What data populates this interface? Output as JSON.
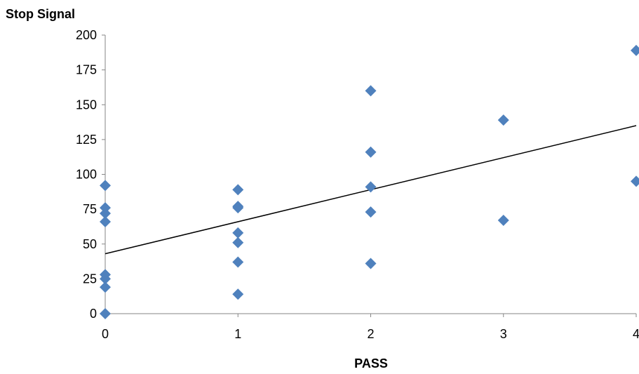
{
  "chart_data": {
    "type": "scatter",
    "ylabel": "Stop Signal",
    "xlabel": "PASS",
    "xlim": [
      0,
      4
    ],
    "ylim": [
      0,
      200
    ],
    "x_ticks": [
      "0",
      "1",
      "2",
      "3",
      "4"
    ],
    "y_ticks": [
      "0",
      "25",
      "50",
      "75",
      "100",
      "125",
      "150",
      "175",
      "200"
    ],
    "grid": false,
    "legend": "none",
    "marker": "diamond",
    "marker_color": "#4F81BD",
    "trendline": {
      "type": "linear",
      "color": "#000000",
      "y_at_x0": 43,
      "y_at_x4": 135
    },
    "series": [
      {
        "points": [
          [
            0,
            92
          ],
          [
            0,
            76
          ],
          [
            0,
            72
          ],
          [
            0,
            66
          ],
          [
            0,
            28
          ],
          [
            0,
            25
          ],
          [
            0,
            19
          ],
          [
            0,
            0
          ],
          [
            1,
            89
          ],
          [
            1,
            77
          ],
          [
            1,
            76
          ],
          [
            1,
            58
          ],
          [
            1,
            51
          ],
          [
            1,
            37
          ],
          [
            1,
            14
          ],
          [
            2,
            160
          ],
          [
            2,
            116
          ],
          [
            2,
            91
          ],
          [
            2,
            73
          ],
          [
            2,
            36
          ],
          [
            3,
            139
          ],
          [
            3,
            67
          ],
          [
            4,
            189
          ],
          [
            4,
            95
          ]
        ]
      }
    ]
  }
}
